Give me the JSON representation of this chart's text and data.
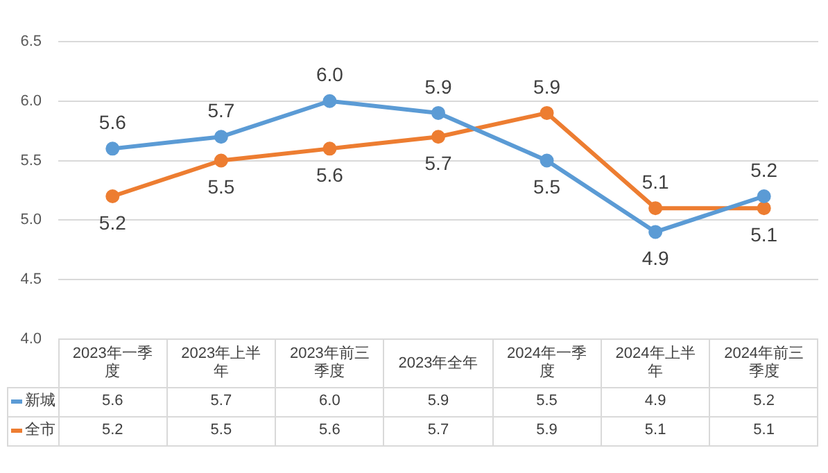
{
  "chart_data": {
    "type": "line",
    "categories": [
      "2023年一季度",
      "2023年上半年",
      "2023年前三季度",
      "2023年全年",
      "2024年一季度",
      "2024年上半年",
      "2024年前三季度"
    ],
    "series": [
      {
        "name": "新城",
        "color": "#5b9bd5",
        "values": [
          5.6,
          5.7,
          6.0,
          5.9,
          5.5,
          4.9,
          5.2
        ],
        "value_labels": [
          "5.6",
          "5.7",
          "6.0",
          "5.9",
          "5.5",
          "4.9",
          "5.2"
        ]
      },
      {
        "name": "全市",
        "color": "#ed7d31",
        "values": [
          5.2,
          5.5,
          5.6,
          5.7,
          5.9,
          5.1,
          5.1
        ],
        "value_labels": [
          "5.2",
          "5.5",
          "5.6",
          "5.7",
          "5.9",
          "5.1",
          "5.1"
        ]
      }
    ],
    "ylim": [
      4.0,
      6.5
    ],
    "yticks": [
      {
        "value": 4.0,
        "label": "4.0"
      },
      {
        "value": 4.5,
        "label": "4.5"
      },
      {
        "value": 5.0,
        "label": "5.0"
      },
      {
        "value": 5.5,
        "label": "5.5"
      },
      {
        "value": 6.0,
        "label": "6.0"
      },
      {
        "value": 6.5,
        "label": "6.5"
      }
    ],
    "grid": "y",
    "marker": "circle",
    "line_style": "solid",
    "legend": "bottom left"
  }
}
